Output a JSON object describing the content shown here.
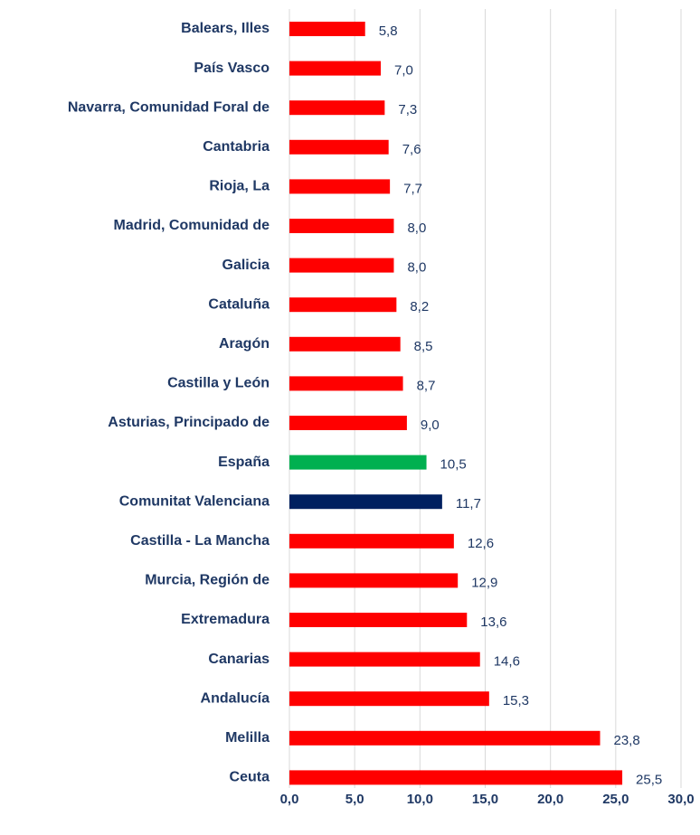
{
  "chart_data": {
    "type": "bar",
    "orientation": "horizontal",
    "categories": [
      "Balears, Illes",
      "País Vasco",
      "Navarra, Comunidad Foral de",
      "Cantabria",
      "Rioja, La",
      "Madrid, Comunidad de",
      "Galicia",
      "Cataluña",
      "Aragón",
      "Castilla y León",
      "Asturias, Principado de",
      "España",
      "Comunitat Valenciana",
      "Castilla - La Mancha",
      "Murcia, Región de",
      "Extremadura",
      "Canarias",
      "Andalucía",
      "Melilla",
      "Ceuta"
    ],
    "values": [
      5.8,
      7.0,
      7.3,
      7.6,
      7.7,
      8.0,
      8.0,
      8.2,
      8.5,
      8.7,
      9.0,
      10.5,
      11.7,
      12.6,
      12.9,
      13.6,
      14.6,
      15.3,
      23.8,
      25.5
    ],
    "value_labels": [
      "5,8",
      "7,0",
      "7,3",
      "7,6",
      "7,7",
      "8,0",
      "8,0",
      "8,2",
      "8,5",
      "8,7",
      "9,0",
      "10,5",
      "11,7",
      "12,6",
      "12,9",
      "13,6",
      "14,6",
      "15,3",
      "23,8",
      "25,5"
    ],
    "colors": [
      "#ff0000",
      "#ff0000",
      "#ff0000",
      "#ff0000",
      "#ff0000",
      "#ff0000",
      "#ff0000",
      "#ff0000",
      "#ff0000",
      "#ff0000",
      "#ff0000",
      "#00b050",
      "#002060",
      "#ff0000",
      "#ff0000",
      "#ff0000",
      "#ff0000",
      "#ff0000",
      "#ff0000",
      "#ff0000"
    ],
    "xlim": [
      0,
      30
    ],
    "xticks": [
      {
        "value": 0,
        "label": "0,0"
      },
      {
        "value": 5,
        "label": "5,0"
      },
      {
        "value": 10,
        "label": "10,0"
      },
      {
        "value": 15,
        "label": "15,0"
      },
      {
        "value": 20,
        "label": "20,0"
      },
      {
        "value": 25,
        "label": "25,0"
      },
      {
        "value": 30,
        "label": "30,0"
      }
    ],
    "grid": true
  }
}
